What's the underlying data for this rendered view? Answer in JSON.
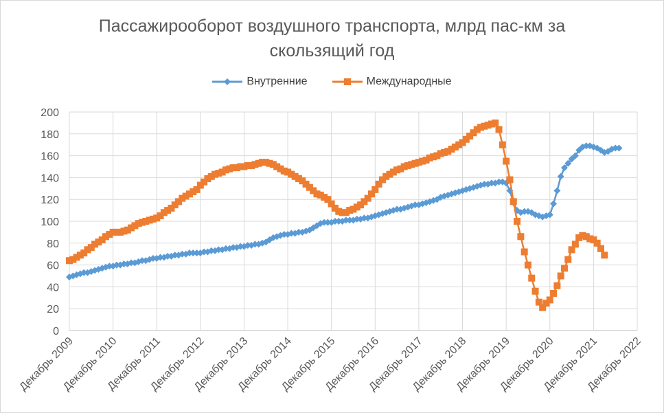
{
  "chart_data": {
    "type": "line",
    "title": "Пассажирооборот воздушного транспорта, млрд пас-км за скользящий год",
    "title_lines": [
      "Пассажирооборот воздушного транспорта, млрд пас-км за",
      "скользящий год"
    ],
    "xlabel": "",
    "ylabel": "",
    "ylim": [
      0,
      200
    ],
    "yticks": [
      0,
      20,
      40,
      60,
      80,
      100,
      120,
      140,
      160,
      180,
      200
    ],
    "grid": true,
    "legend_position": "top",
    "x_tick_labels": [
      "Декабрь 2009",
      "Декабрь 2010",
      "Декабрь 2011",
      "Декабрь 2012",
      "Декабрь 2013",
      "Декабрь 2014",
      "Декабрь 2015",
      "Декабрь 2016",
      "Декабрь 2017",
      "Декабрь 2018",
      "Декабрь 2019",
      "Декабрь 2020",
      "Декабрь 2021",
      "Декабрь 2022"
    ],
    "x_frequency": "monthly, starting Декабрь 2009",
    "series": [
      {
        "name": "Внутренние",
        "color": "#5b9bd5",
        "marker": "diamond",
        "values": [
          49,
          50,
          51,
          52,
          53,
          53,
          54,
          55,
          56,
          57,
          58,
          59,
          59,
          60,
          60,
          61,
          61,
          62,
          62,
          63,
          64,
          64,
          65,
          66,
          66,
          67,
          67,
          68,
          68,
          69,
          69,
          70,
          70,
          71,
          71,
          71,
          71,
          72,
          72,
          73,
          73,
          74,
          74,
          75,
          75,
          76,
          76,
          77,
          77,
          78,
          78,
          79,
          79,
          80,
          81,
          83,
          85,
          86,
          87,
          88,
          88,
          89,
          89,
          90,
          90,
          91,
          92,
          94,
          96,
          98,
          99,
          99,
          99,
          100,
          100,
          100,
          101,
          101,
          101,
          102,
          102,
          103,
          103,
          104,
          105,
          106,
          107,
          108,
          109,
          110,
          111,
          111,
          112,
          113,
          114,
          115,
          115,
          116,
          117,
          118,
          119,
          120,
          122,
          123,
          124,
          125,
          126,
          127,
          128,
          129,
          130,
          131,
          132,
          133,
          134,
          134,
          135,
          135,
          136,
          136,
          135,
          128,
          117,
          110,
          108,
          109,
          109,
          108,
          106,
          105,
          104,
          105,
          106,
          116,
          128,
          141,
          149,
          153,
          157,
          160,
          165,
          168,
          169,
          169,
          168,
          167,
          165,
          163,
          164,
          166,
          167,
          167
        ]
      },
      {
        "name": "Международные",
        "color": "#ed7d31",
        "marker": "square",
        "values": [
          64,
          65,
          67,
          69,
          71,
          74,
          76,
          79,
          81,
          83,
          86,
          88,
          90,
          90,
          90,
          91,
          92,
          94,
          96,
          98,
          99,
          100,
          101,
          102,
          103,
          105,
          108,
          110,
          112,
          115,
          118,
          121,
          123,
          125,
          127,
          129,
          133,
          136,
          139,
          141,
          143,
          144,
          145,
          147,
          148,
          149,
          149,
          150,
          150,
          151,
          151,
          152,
          153,
          154,
          154,
          153,
          152,
          150,
          148,
          146,
          145,
          143,
          141,
          139,
          137,
          134,
          131,
          128,
          125,
          124,
          122,
          120,
          116,
          112,
          109,
          108,
          108,
          110,
          111,
          113,
          115,
          118,
          121,
          125,
          129,
          134,
          138,
          141,
          143,
          145,
          147,
          148,
          150,
          151,
          152,
          153,
          154,
          155,
          156,
          158,
          159,
          160,
          162,
          163,
          164,
          166,
          168,
          170,
          172,
          175,
          178,
          181,
          184,
          186,
          187,
          188,
          189,
          190,
          184,
          170,
          155,
          138,
          118,
          100,
          86,
          72,
          60,
          48,
          36,
          26,
          21,
          25,
          28,
          34,
          41,
          50,
          57,
          65,
          74,
          79,
          85,
          87,
          86,
          84,
          83,
          80,
          75,
          69
        ]
      }
    ]
  },
  "legend": {
    "items": [
      {
        "label": "Внутренние",
        "color": "#5b9bd5"
      },
      {
        "label": "Международные",
        "color": "#ed7d31"
      }
    ]
  }
}
